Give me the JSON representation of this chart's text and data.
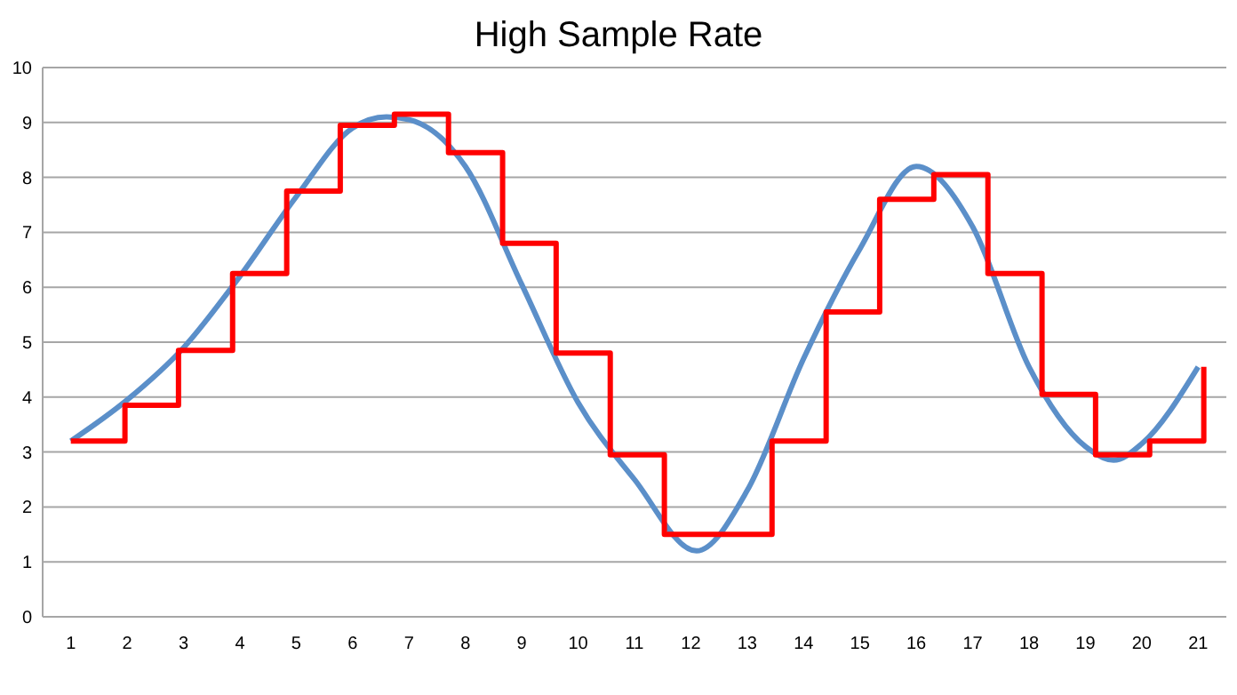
{
  "chart_data": {
    "type": "line",
    "title": "High Sample Rate",
    "xlim": [
      0.5,
      21.5
    ],
    "xticks": [
      1,
      2,
      3,
      4,
      5,
      6,
      7,
      8,
      9,
      10,
      11,
      12,
      13,
      14,
      15,
      16,
      17,
      18,
      19,
      20,
      21
    ],
    "ylim": [
      0,
      10
    ],
    "yticks": [
      0,
      1,
      2,
      3,
      4,
      5,
      6,
      7,
      8,
      9,
      10
    ],
    "grid": "y",
    "marker": "none",
    "line_style": "solid",
    "series": [
      {
        "color": "#5b8fc9",
        "x": [
          1,
          2,
          3,
          4,
          5,
          6,
          6.6,
          7,
          8,
          9,
          10,
          11,
          12.1,
          13,
          14,
          15,
          16,
          17,
          18,
          19,
          19.5,
          20,
          21
        ],
        "values": [
          3.2,
          3.95,
          4.9,
          6.2,
          7.65,
          8.9,
          9.1,
          9.05,
          8.2,
          6.05,
          3.9,
          2.5,
          1.2,
          2.3,
          4.7,
          6.7,
          8.2,
          7.1,
          4.55,
          3.1,
          2.85,
          3.15,
          4.55
        ]
      },
      {
        "type": "step",
        "color": "#ff0000",
        "x": [
          1,
          1.96,
          2.91,
          3.87,
          4.83,
          5.78,
          6.74,
          7.7,
          8.66,
          9.61,
          10.57,
          11.53,
          12.48,
          13.44,
          14.4,
          15.35,
          16.31,
          17.27,
          18.23,
          19.18,
          20.14,
          21.1
        ],
        "values": [
          3.2,
          3.85,
          4.85,
          6.25,
          7.75,
          8.95,
          9.15,
          8.45,
          6.8,
          4.8,
          2.95,
          1.5,
          1.5,
          3.2,
          5.55,
          7.6,
          8.05,
          6.25,
          4.05,
          2.95,
          3.2,
          4.55
        ]
      }
    ]
  }
}
